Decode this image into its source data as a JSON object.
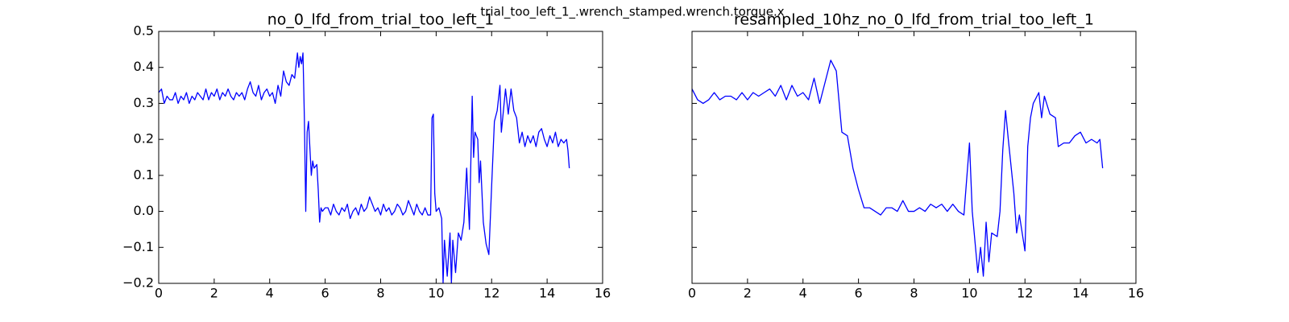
{
  "title": "trial_too_left_1_.wrench_stamped.wrench.torque.x",
  "chart_data": [
    {
      "type": "line",
      "title": "no_0_lfd_from_trial_too_left_1",
      "color": "#0000ff",
      "x": [
        0,
        0.1,
        0.2,
        0.3,
        0.4,
        0.5,
        0.6,
        0.7,
        0.8,
        0.9,
        1.0,
        1.1,
        1.2,
        1.3,
        1.4,
        1.5,
        1.6,
        1.7,
        1.8,
        1.9,
        2.0,
        2.1,
        2.2,
        2.3,
        2.4,
        2.5,
        2.6,
        2.7,
        2.8,
        2.9,
        3.0,
        3.1,
        3.2,
        3.3,
        3.4,
        3.5,
        3.6,
        3.7,
        3.8,
        3.9,
        4.0,
        4.1,
        4.2,
        4.3,
        4.4,
        4.5,
        4.6,
        4.7,
        4.8,
        4.9,
        5.0,
        5.05,
        5.1,
        5.15,
        5.2,
        5.25,
        5.3,
        5.35,
        5.4,
        5.5,
        5.55,
        5.6,
        5.7,
        5.75,
        5.8,
        5.85,
        5.9,
        6.0,
        6.1,
        6.2,
        6.3,
        6.4,
        6.5,
        6.6,
        6.7,
        6.8,
        6.9,
        7.0,
        7.1,
        7.2,
        7.3,
        7.4,
        7.5,
        7.6,
        7.7,
        7.8,
        7.9,
        8.0,
        8.1,
        8.2,
        8.3,
        8.4,
        8.5,
        8.6,
        8.7,
        8.8,
        8.9,
        9.0,
        9.1,
        9.2,
        9.3,
        9.4,
        9.5,
        9.6,
        9.7,
        9.8,
        9.85,
        9.9,
        9.95,
        10.0,
        10.1,
        10.2,
        10.25,
        10.3,
        10.4,
        10.5,
        10.55,
        10.6,
        10.7,
        10.8,
        10.9,
        11.0,
        11.1,
        11.2,
        11.3,
        11.35,
        11.4,
        11.5,
        11.55,
        11.6,
        11.7,
        11.8,
        11.9,
        12.0,
        12.1,
        12.2,
        12.3,
        12.35,
        12.4,
        12.5,
        12.6,
        12.7,
        12.8,
        12.9,
        13.0,
        13.1,
        13.2,
        13.3,
        13.4,
        13.5,
        13.6,
        13.7,
        13.8,
        13.9,
        14.0,
        14.1,
        14.2,
        14.3,
        14.4,
        14.5,
        14.6,
        14.7,
        14.75,
        14.8
      ],
      "values": [
        0.33,
        0.34,
        0.3,
        0.32,
        0.31,
        0.31,
        0.33,
        0.3,
        0.32,
        0.31,
        0.33,
        0.3,
        0.32,
        0.31,
        0.33,
        0.32,
        0.31,
        0.34,
        0.31,
        0.33,
        0.32,
        0.34,
        0.31,
        0.33,
        0.32,
        0.34,
        0.32,
        0.31,
        0.33,
        0.32,
        0.33,
        0.31,
        0.34,
        0.36,
        0.33,
        0.32,
        0.35,
        0.31,
        0.33,
        0.34,
        0.32,
        0.33,
        0.3,
        0.35,
        0.32,
        0.39,
        0.36,
        0.35,
        0.38,
        0.37,
        0.44,
        0.4,
        0.43,
        0.41,
        0.44,
        0.26,
        0.0,
        0.22,
        0.25,
        0.1,
        0.14,
        0.12,
        0.13,
        0.06,
        -0.03,
        0.01,
        0.0,
        0.01,
        0.01,
        -0.01,
        0.02,
        0.0,
        -0.01,
        0.01,
        0.0,
        0.02,
        -0.02,
        0.0,
        0.01,
        -0.01,
        0.02,
        0.0,
        0.01,
        0.04,
        0.02,
        0.0,
        0.01,
        -0.01,
        0.02,
        0.0,
        0.01,
        -0.01,
        0.0,
        0.02,
        0.01,
        -0.01,
        0.0,
        0.03,
        0.01,
        -0.01,
        0.02,
        0.0,
        -0.01,
        0.01,
        -0.01,
        -0.01,
        0.26,
        0.27,
        0.05,
        0.0,
        0.01,
        -0.02,
        -0.2,
        -0.08,
        -0.18,
        -0.06,
        -0.2,
        -0.08,
        -0.17,
        -0.06,
        -0.08,
        -0.03,
        0.12,
        -0.05,
        0.32,
        0.15,
        0.22,
        0.2,
        0.08,
        0.14,
        -0.03,
        -0.09,
        -0.12,
        0.07,
        0.25,
        0.28,
        0.35,
        0.22,
        0.26,
        0.34,
        0.27,
        0.34,
        0.28,
        0.26,
        0.19,
        0.22,
        0.18,
        0.21,
        0.19,
        0.21,
        0.18,
        0.22,
        0.23,
        0.2,
        0.18,
        0.21,
        0.19,
        0.22,
        0.18,
        0.2,
        0.19,
        0.2,
        0.17,
        0.12
      ],
      "xlim": [
        0,
        16
      ],
      "xticks": [
        0,
        2,
        4,
        6,
        8,
        10,
        12,
        14,
        16
      ],
      "ylim": [
        -0.2,
        0.5
      ],
      "yticks": [
        {
          "value": -0.2,
          "label": "−0.2"
        },
        {
          "value": -0.1,
          "label": "−0.1"
        },
        {
          "value": 0,
          "label": "0.0"
        },
        0.1,
        0.2,
        0.3,
        0.4,
        0.5
      ],
      "show_yticklabels": true
    },
    {
      "type": "line",
      "title": "resampled_10hz_no_0_lfd_from_trial_too_left_1",
      "color": "#0000ff",
      "x": [
        0,
        0.2,
        0.4,
        0.6,
        0.8,
        1.0,
        1.2,
        1.4,
        1.6,
        1.8,
        2.0,
        2.2,
        2.4,
        2.6,
        2.8,
        3.0,
        3.2,
        3.4,
        3.6,
        3.8,
        4.0,
        4.2,
        4.4,
        4.6,
        4.8,
        5.0,
        5.2,
        5.4,
        5.6,
        5.8,
        6.0,
        6.2,
        6.4,
        6.6,
        6.8,
        7.0,
        7.2,
        7.4,
        7.6,
        7.8,
        8.0,
        8.2,
        8.4,
        8.6,
        8.8,
        9.0,
        9.2,
        9.4,
        9.6,
        9.8,
        10.0,
        10.1,
        10.3,
        10.4,
        10.5,
        10.6,
        10.7,
        10.8,
        11.0,
        11.1,
        11.2,
        11.3,
        11.4,
        11.6,
        11.7,
        11.8,
        12.0,
        12.1,
        12.2,
        12.3,
        12.5,
        12.6,
        12.7,
        12.9,
        13.1,
        13.2,
        13.4,
        13.6,
        13.8,
        14.0,
        14.2,
        14.4,
        14.6,
        14.7,
        14.8
      ],
      "values": [
        0.34,
        0.31,
        0.3,
        0.31,
        0.33,
        0.31,
        0.32,
        0.32,
        0.31,
        0.33,
        0.31,
        0.33,
        0.32,
        0.33,
        0.34,
        0.32,
        0.35,
        0.31,
        0.35,
        0.32,
        0.33,
        0.31,
        0.37,
        0.3,
        0.36,
        0.42,
        0.39,
        0.22,
        0.21,
        0.12,
        0.06,
        0.01,
        0.01,
        0.0,
        -0.01,
        0.01,
        0.01,
        0.0,
        0.03,
        0.0,
        0.0,
        0.01,
        0.0,
        0.02,
        0.01,
        0.02,
        0.0,
        0.02,
        0.0,
        -0.01,
        0.19,
        0.0,
        -0.17,
        -0.1,
        -0.18,
        -0.03,
        -0.14,
        -0.06,
        -0.07,
        0.0,
        0.17,
        0.28,
        0.2,
        0.05,
        -0.06,
        -0.01,
        -0.11,
        0.18,
        0.26,
        0.3,
        0.33,
        0.26,
        0.32,
        0.27,
        0.26,
        0.18,
        0.19,
        0.19,
        0.21,
        0.22,
        0.19,
        0.2,
        0.19,
        0.2,
        0.12
      ],
      "xlim": [
        0,
        16
      ],
      "xticks": [
        0,
        2,
        4,
        6,
        8,
        10,
        12,
        14,
        16
      ],
      "ylim": [
        -0.2,
        0.5
      ],
      "yticks": [
        -0.2,
        -0.1,
        0,
        0.1,
        0.2,
        0.3,
        0.4,
        0.5
      ],
      "show_yticklabels": false
    }
  ]
}
